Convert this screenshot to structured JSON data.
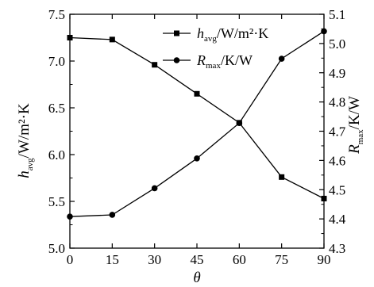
{
  "chart_data": {
    "type": "line",
    "x": [
      0,
      15,
      30,
      45,
      60,
      75,
      90
    ],
    "xlabel": "θ",
    "xlim": [
      0,
      90
    ],
    "xticks": [
      0,
      15,
      30,
      45,
      60,
      75,
      90
    ],
    "series": [
      {
        "name": "h_avg/W/m²·K",
        "marker": "square",
        "axis": "left",
        "values": [
          7.25,
          7.23,
          6.96,
          6.65,
          6.34,
          5.76,
          5.53
        ]
      },
      {
        "name": "R_max/K/W",
        "marker": "circle",
        "axis": "right",
        "values": [
          4.408,
          4.414,
          4.505,
          4.607,
          4.728,
          4.948,
          5.042
        ]
      }
    ],
    "ylim_left": [
      5.0,
      7.5
    ],
    "yticks_left": [
      "5.0",
      "5.5",
      "6.0",
      "6.5",
      "7.0",
      "7.5"
    ],
    "ylim_right": [
      4.3,
      5.1
    ],
    "yticks_right": [
      "4.3",
      "4.4",
      "4.5",
      "4.6",
      "4.7",
      "4.8",
      "4.9",
      "5.0",
      "5.1"
    ],
    "ylabel_left": {
      "main": "h",
      "sub": "avg",
      "unit": "/W/m²·K"
    },
    "ylabel_right": {
      "main": "R",
      "sub": "max",
      "unit": "/K/W"
    },
    "legend": {
      "placement": "top-center",
      "entries": [
        {
          "main": "h",
          "sub": "avg",
          "unit": "/W/m²·K"
        },
        {
          "main": "R",
          "sub": "max",
          "unit": "/K/W"
        }
      ]
    },
    "grid": false,
    "colors": {
      "line": "#000000",
      "background": "#ffffff"
    }
  }
}
